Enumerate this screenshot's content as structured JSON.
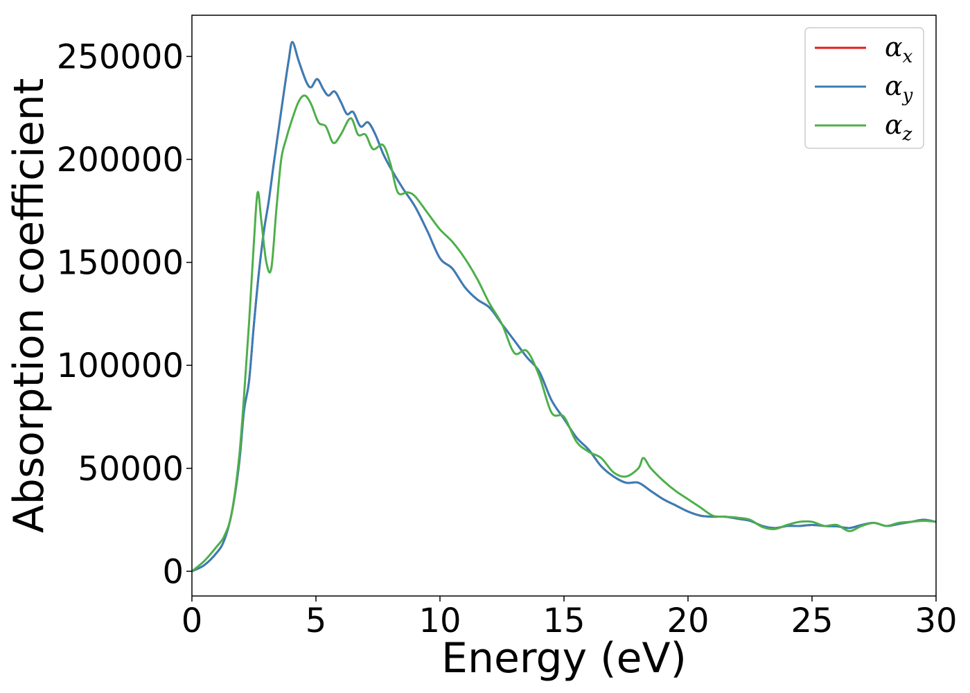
{
  "chart_data": {
    "type": "line",
    "title": "",
    "xlabel": "Energy (eV)",
    "ylabel": "Absorption coefficient",
    "xlim": [
      0,
      30
    ],
    "ylim": [
      -12000,
      270000
    ],
    "xticks": [
      0,
      5,
      10,
      15,
      20,
      25,
      30
    ],
    "yticks": [
      0,
      50000,
      100000,
      150000,
      200000,
      250000
    ],
    "grid": false,
    "legend_position": "top-right",
    "series": [
      {
        "name": "αx",
        "symbol": "α",
        "subscript": "x",
        "color": "#e41a1c",
        "x": [
          0,
          0.5,
          1,
          1.3,
          1.6,
          1.9,
          2.1,
          2.3,
          2.5,
          2.7,
          2.9,
          3.1,
          3.3,
          3.5,
          3.7,
          3.9,
          4.05,
          4.3,
          4.6,
          4.8,
          5.05,
          5.3,
          5.5,
          5.75,
          6,
          6.25,
          6.5,
          6.8,
          7.1,
          7.4,
          7.7,
          8,
          8.5,
          9,
          9.5,
          10,
          10.5,
          11,
          11.5,
          12,
          12.5,
          13,
          13.5,
          14,
          14.5,
          15,
          15.5,
          16,
          16.5,
          17,
          17.5,
          18,
          18.5,
          19,
          19.5,
          20,
          20.5,
          21,
          21.5,
          22,
          22.5,
          23,
          23.5,
          24,
          24.5,
          25,
          25.5,
          26,
          26.5,
          27,
          27.5,
          28,
          28.5,
          29,
          29.5,
          30
        ],
        "values": [
          0,
          3000,
          9000,
          15000,
          28000,
          52000,
          78000,
          92000,
          120000,
          145000,
          165000,
          180000,
          198000,
          215000,
          232000,
          248000,
          257000,
          248000,
          238000,
          235000,
          239000,
          234000,
          231000,
          233000,
          228000,
          222000,
          223000,
          216000,
          218000,
          212000,
          203000,
          196000,
          186000,
          177000,
          165000,
          152000,
          147000,
          138000,
          132000,
          128000,
          120000,
          112000,
          104000,
          97000,
          83000,
          74000,
          65000,
          59000,
          51000,
          46000,
          43000,
          43000,
          39000,
          35000,
          32000,
          29000,
          27000,
          26500,
          26500,
          25500,
          24500,
          22000,
          21000,
          22000,
          22000,
          22500,
          22000,
          21800,
          21000,
          22500,
          23500,
          22000,
          23000,
          24000,
          25000,
          24000
        ]
      },
      {
        "name": "αy",
        "symbol": "α",
        "subscript": "y",
        "color": "#377eb8",
        "x": [
          0,
          0.5,
          1,
          1.3,
          1.6,
          1.9,
          2.1,
          2.3,
          2.5,
          2.7,
          2.9,
          3.1,
          3.3,
          3.5,
          3.7,
          3.9,
          4.05,
          4.3,
          4.6,
          4.8,
          5.05,
          5.3,
          5.5,
          5.75,
          6,
          6.25,
          6.5,
          6.8,
          7.1,
          7.4,
          7.7,
          8,
          8.5,
          9,
          9.5,
          10,
          10.5,
          11,
          11.5,
          12,
          12.5,
          13,
          13.5,
          14,
          14.5,
          15,
          15.5,
          16,
          16.5,
          17,
          17.5,
          18,
          18.5,
          19,
          19.5,
          20,
          20.5,
          21,
          21.5,
          22,
          22.5,
          23,
          23.5,
          24,
          24.5,
          25,
          25.5,
          26,
          26.5,
          27,
          27.5,
          28,
          28.5,
          29,
          29.5,
          30
        ],
        "values": [
          0,
          3000,
          9000,
          15000,
          28000,
          52000,
          78000,
          92000,
          120000,
          145000,
          165000,
          180000,
          198000,
          215000,
          232000,
          248000,
          257000,
          248000,
          238000,
          235000,
          239000,
          234000,
          231000,
          233000,
          228000,
          222000,
          223000,
          216000,
          218000,
          212000,
          203000,
          196000,
          186000,
          177000,
          165000,
          152000,
          147000,
          138000,
          132000,
          128000,
          120000,
          112000,
          104000,
          97000,
          83000,
          74000,
          65000,
          59000,
          51000,
          46000,
          43000,
          43000,
          39000,
          35000,
          32000,
          29000,
          27000,
          26500,
          26500,
          25500,
          24500,
          22000,
          21000,
          22000,
          22000,
          22500,
          22000,
          21800,
          21000,
          22500,
          23500,
          22000,
          23000,
          24000,
          25000,
          24000
        ]
      },
      {
        "name": "αz",
        "symbol": "α",
        "subscript": "z",
        "color": "#4daf4a",
        "x": [
          0,
          0.5,
          1,
          1.3,
          1.6,
          1.9,
          2.1,
          2.3,
          2.5,
          2.65,
          2.8,
          3,
          3.2,
          3.4,
          3.6,
          3.8,
          4,
          4.3,
          4.55,
          4.8,
          5.1,
          5.4,
          5.7,
          6,
          6.4,
          6.7,
          7,
          7.3,
          7.7,
          8,
          8.3,
          8.7,
          9,
          9.5,
          10,
          10.5,
          11,
          11.5,
          12,
          12.5,
          13,
          13.5,
          14,
          14.5,
          15,
          15.5,
          16,
          16.5,
          17,
          17.5,
          18,
          18.2,
          18.5,
          19,
          19.5,
          20,
          20.5,
          21,
          21.5,
          22,
          22.5,
          23,
          23.5,
          24,
          24.5,
          25,
          25.5,
          26,
          26.5,
          27,
          27.5,
          28,
          28.5,
          29,
          29.5,
          30
        ],
        "values": [
          0,
          5000,
          12000,
          17000,
          28000,
          55000,
          85000,
          120000,
          160000,
          184000,
          170000,
          150000,
          147000,
          175000,
          200000,
          210000,
          218000,
          228000,
          231000,
          227000,
          218000,
          216000,
          208000,
          212000,
          220000,
          212000,
          212000,
          205000,
          207000,
          198000,
          184000,
          184000,
          182000,
          174000,
          166000,
          160000,
          152000,
          142000,
          130000,
          120000,
          106000,
          107000,
          95000,
          77000,
          75000,
          63000,
          58000,
          55000,
          48000,
          46000,
          50000,
          55000,
          50000,
          44000,
          39000,
          35000,
          31000,
          27000,
          26500,
          26000,
          25000,
          21500,
          20500,
          22500,
          24000,
          24000,
          22000,
          22500,
          19500,
          22000,
          23500,
          22000,
          23500,
          24000,
          24500,
          24000
        ]
      }
    ]
  }
}
